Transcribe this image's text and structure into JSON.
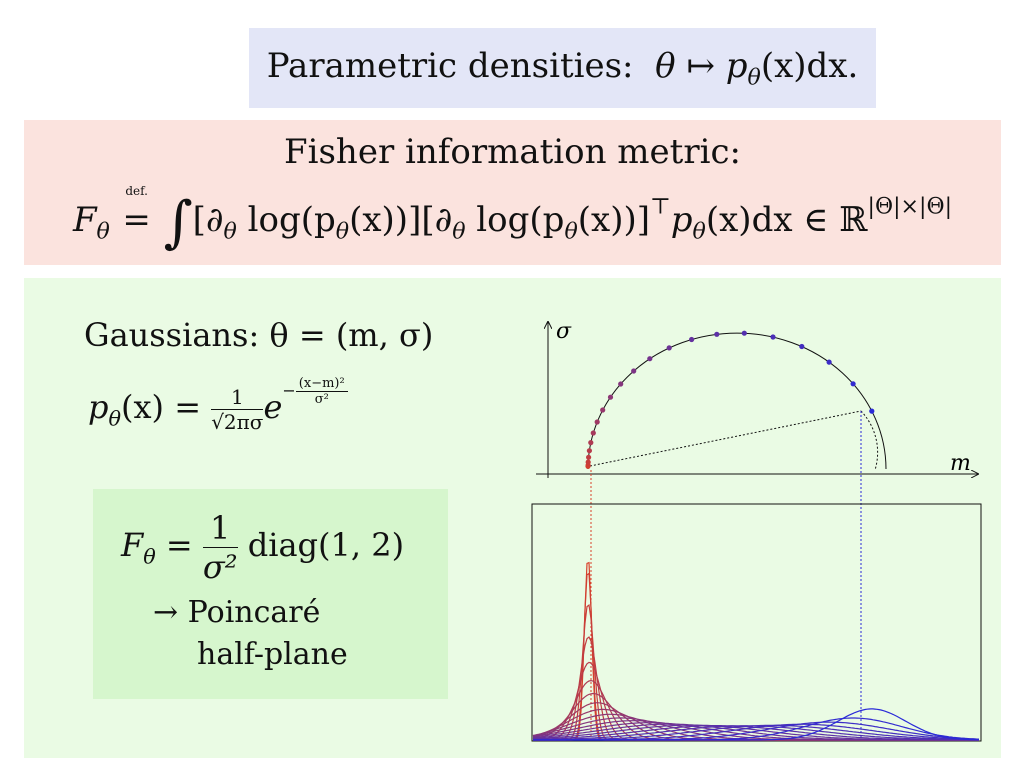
{
  "title": {
    "prefix": "Parametric densities:",
    "theta": "θ",
    "mapsto": "↦",
    "p": "p",
    "paren": "(x)dx."
  },
  "fisher": {
    "heading": "Fisher information metric:",
    "lhs": "F",
    "def": "def.",
    "integrand": "[∂",
    "log_part": " log(p",
    "x_part": "(x))][∂",
    "log_part2": " log(p",
    "x_part2": "(x))]",
    "top": "⊤",
    "p_tail": "p",
    "tail": "(x)dx ∈ ℝ",
    "dims": "|Θ|×|Θ|"
  },
  "gaussians": {
    "line1": "Gaussians:  θ = (m, σ)",
    "pdf_lhs": "p",
    "pdf_x": "(x) = ",
    "frac_num": "1",
    "frac_den": "√2πσ",
    "exp_base": "e",
    "exp_num": "(x−m)²",
    "exp_den": "σ²",
    "exp_sign": "−"
  },
  "summary": {
    "F": "F",
    "eq": " = ",
    "frac_num": "1",
    "frac_den": "σ²",
    "diag": " diag(1, 2)",
    "arrow_line": "→ Poincaré",
    "arrow_line2": "half-plane"
  },
  "plot": {
    "sigma_label": "σ",
    "m_label": "m"
  },
  "colors": {
    "red": "#d8402a",
    "blue": "#2a2ad8"
  }
}
